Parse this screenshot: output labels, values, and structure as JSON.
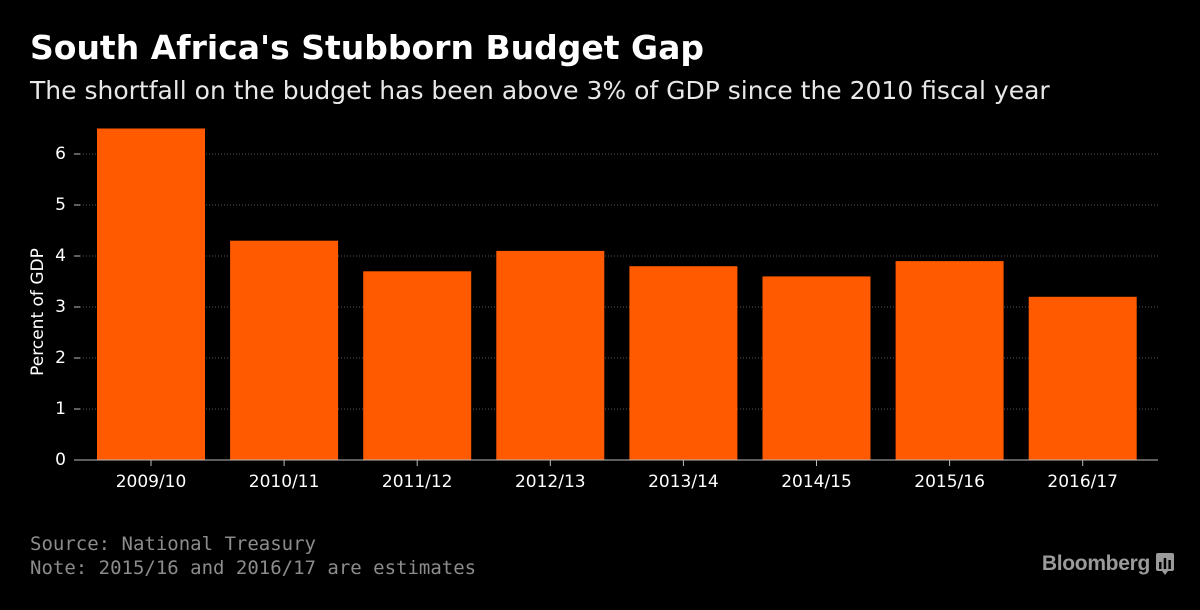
{
  "chart_data": {
    "type": "bar",
    "title": "South Africa's Stubborn Budget Gap",
    "subtitle": "The shortfall on the budget has been above 3% of GDP since the 2010 fiscal year",
    "xlabel": "",
    "ylabel": "Percent of GDP",
    "categories": [
      "2009/10",
      "2010/11",
      "2011/12",
      "2012/13",
      "2013/14",
      "2014/15",
      "2015/16",
      "2016/17"
    ],
    "values": [
      6.5,
      4.3,
      3.7,
      4.1,
      3.8,
      3.6,
      3.9,
      3.2
    ],
    "ylim": [
      0,
      6.6
    ],
    "yticks": [
      0,
      1,
      2,
      3,
      4,
      5,
      6
    ],
    "grid": true,
    "legend": "none"
  },
  "footer": {
    "source": "Source: National Treasury",
    "note": "Note: 2015/16 and 2016/17 are estimates"
  },
  "brand": {
    "name": "Bloomberg",
    "icon": "bar-chart-icon"
  },
  "colors": {
    "background": "#000000",
    "bar": "#ff5a00",
    "text": "#ffffff",
    "grid": "#555555",
    "footer": "#8c8c8c"
  }
}
